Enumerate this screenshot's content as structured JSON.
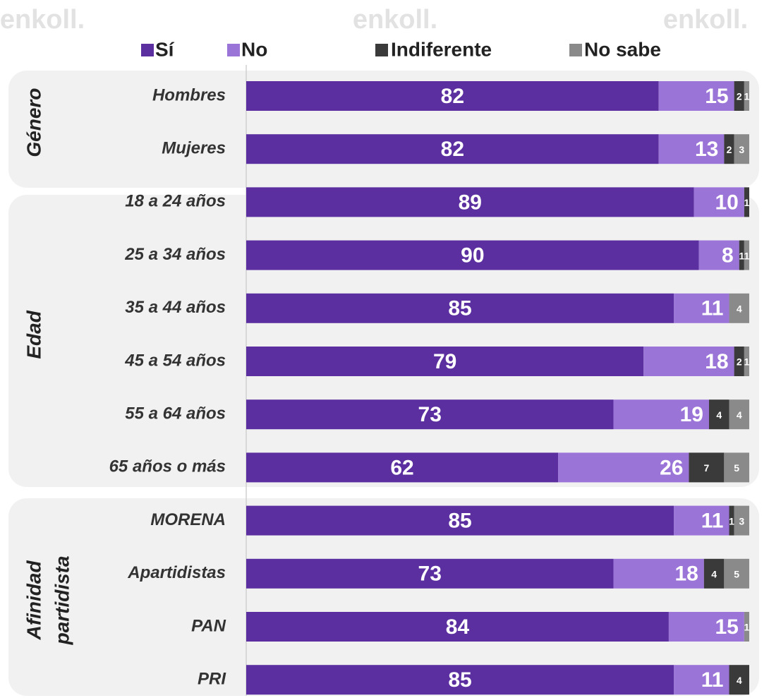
{
  "chart_data": {
    "type": "stacked-bar-horizontal",
    "watermark": "enkoll.",
    "groups": [
      {
        "label_lines": [
          "Género"
        ]
      },
      {
        "label_lines": [
          "Edad"
        ]
      },
      {
        "label_lines": [
          "Afinidad",
          "partidista"
        ]
      }
    ],
    "categories": [
      "Hombres",
      "Mujeres",
      "18 a 24 años",
      "25 a 34 años",
      "35 a 44 años",
      "45 a 54 años",
      "55 a 64 años",
      "65 años o más",
      "MORENA",
      "Apartidistas",
      "PAN",
      "PRI"
    ],
    "xlim": [
      0,
      100
    ],
    "series": [
      {
        "name": "Sí",
        "color": "#5b2f9f",
        "values": [
          82,
          82,
          89,
          90,
          85,
          79,
          73,
          62,
          85,
          73,
          84,
          85
        ]
      },
      {
        "name": "No",
        "color": "#9b74d8",
        "values": [
          15,
          13,
          10,
          8,
          11,
          18,
          19,
          26,
          11,
          18,
          15,
          11
        ]
      },
      {
        "name": "Indiferente",
        "color": "#3a3a3a",
        "values": [
          2,
          2,
          1,
          1,
          null,
          2,
          4,
          7,
          1,
          4,
          null,
          4
        ]
      },
      {
        "name": "No sabe",
        "color": "#8a8a8a",
        "values": [
          1,
          3,
          null,
          1,
          4,
          1,
          4,
          5,
          3,
          5,
          1,
          null
        ]
      }
    ]
  }
}
